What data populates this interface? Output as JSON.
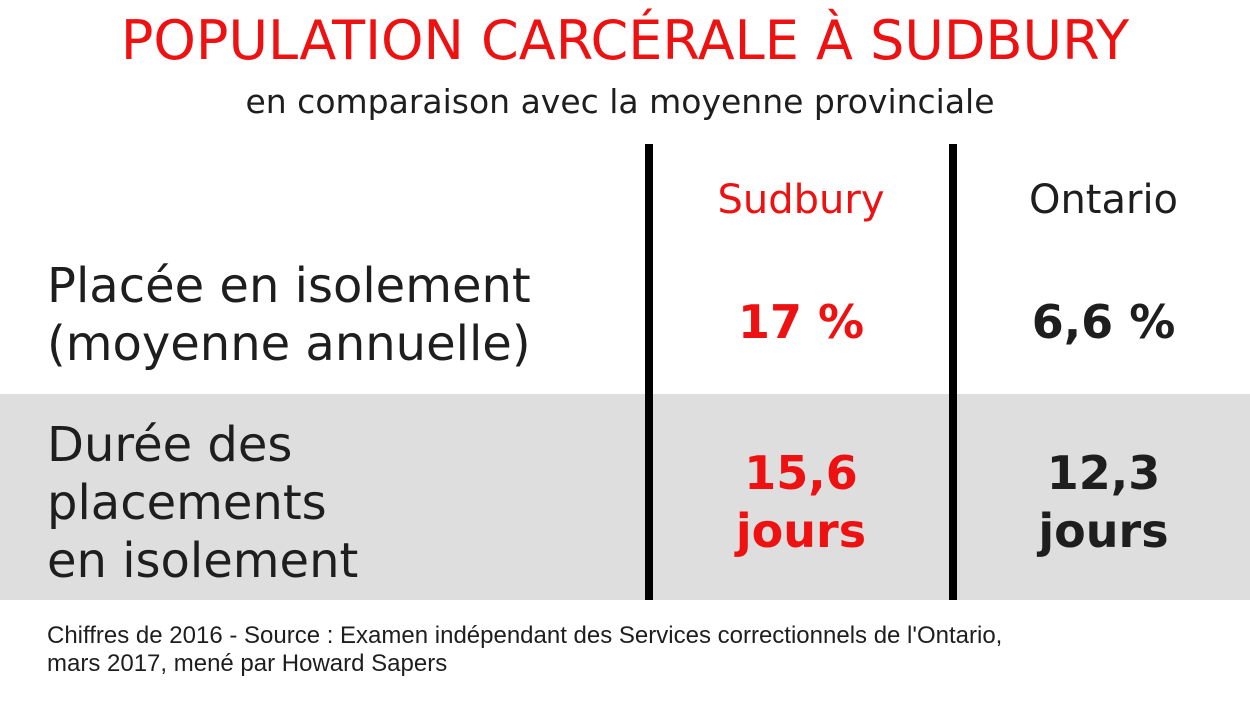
{
  "colors": {
    "accent_red": "#ee1111",
    "text_dark": "#1e1e1e",
    "row_shade": "#dedede",
    "divider": "#000000"
  },
  "chart_data": {
    "type": "table",
    "title": "POPULATION CARCÉRALE À SUDBURY",
    "subtitle": "en comparaison avec la moyenne provinciale",
    "columns": [
      "Sudbury",
      "Ontario"
    ],
    "rows": [
      {
        "label_lines": [
          "Placée en isolement",
          "(moyenne annuelle)"
        ],
        "values": [
          {
            "lines": [
              "17 %"
            ],
            "value": 17,
            "unit": "%"
          },
          {
            "lines": [
              "6,6 %"
            ],
            "value": 6.6,
            "unit": "%"
          }
        ]
      },
      {
        "label_lines": [
          "Durée des",
          "placements",
          "en isolement"
        ],
        "values": [
          {
            "lines": [
              "15,6",
              "jours"
            ],
            "value": 15.6,
            "unit": "jours"
          },
          {
            "lines": [
              "12,3",
              "jours"
            ],
            "value": 12.3,
            "unit": "jours"
          }
        ]
      }
    ],
    "source_lines": [
      "Chiffres de 2016 - Source : Examen indépendant des Services correctionnels de l'Ontario,",
      "mars 2017, mené par Howard Sapers"
    ]
  }
}
